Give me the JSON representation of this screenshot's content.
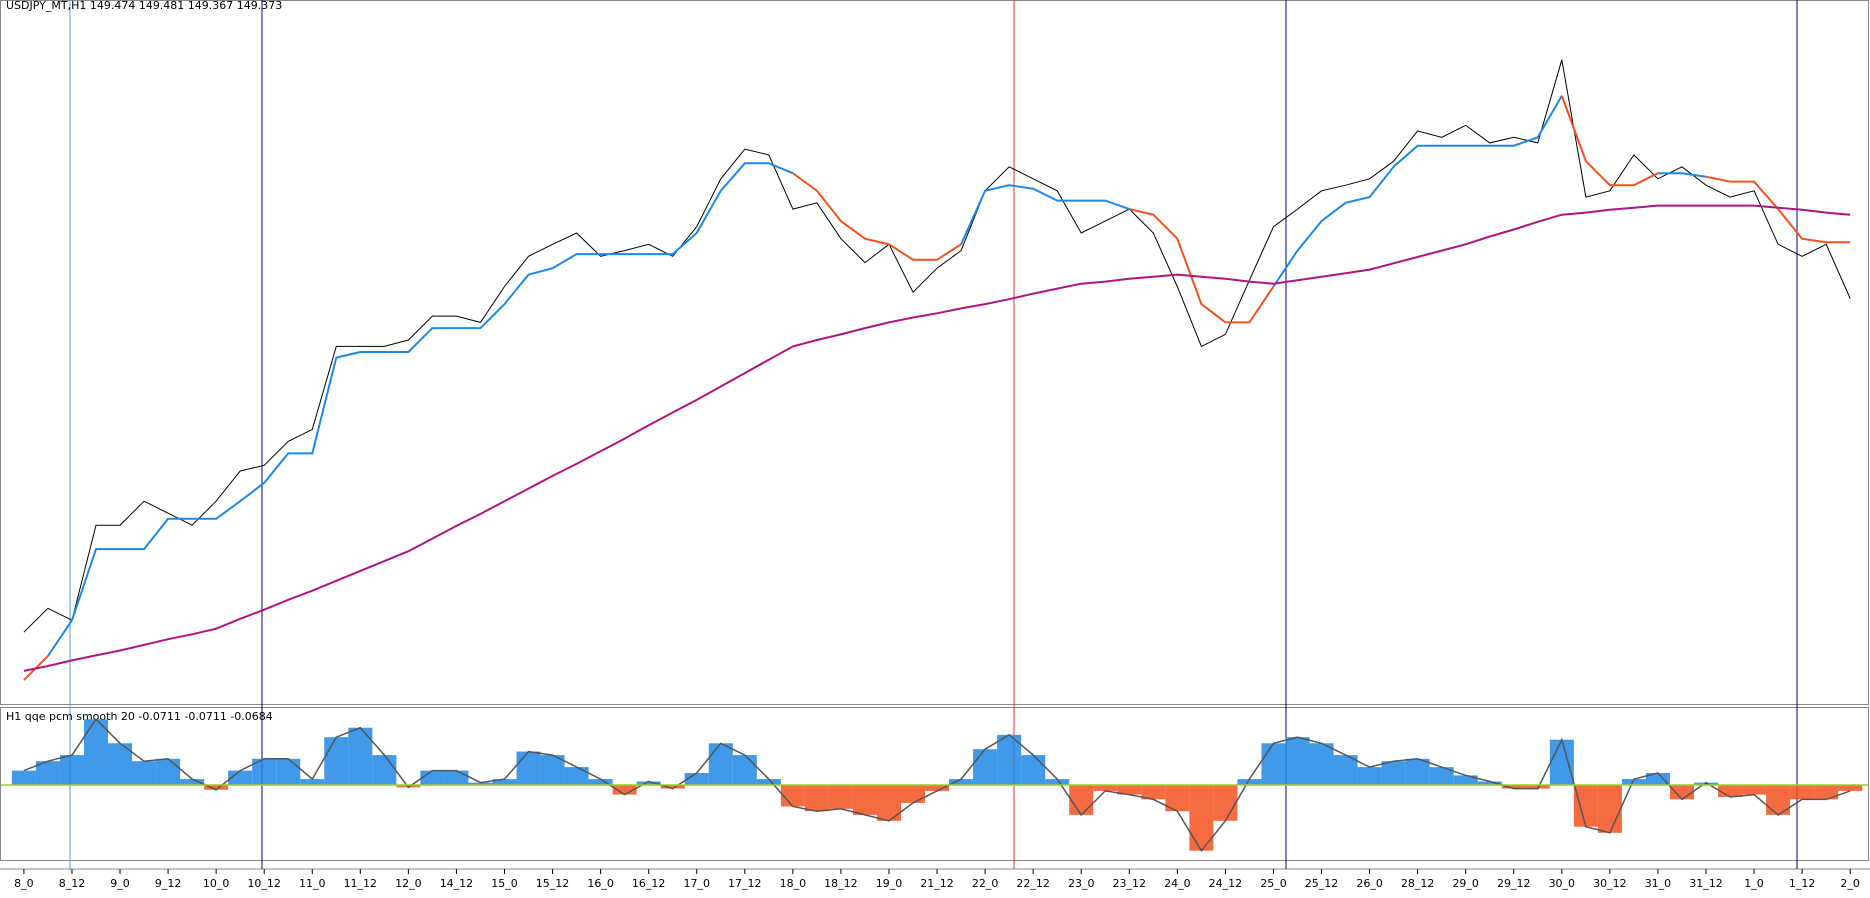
{
  "chart_data": [
    {
      "type": "line",
      "title": "USDJPY_MT,H1  149.474 149.481 149.367 149.373",
      "categories": [
        "8_0",
        null,
        "8_12",
        null,
        "9_0",
        null,
        "9_12",
        null,
        "10_0",
        null,
        "10_12",
        null,
        "11_0",
        null,
        "11_12",
        null,
        "12_0",
        null,
        "14_12",
        null,
        "15_0",
        null,
        "15_12",
        null,
        "16_0",
        null,
        "16_12",
        null,
        "17_0",
        null,
        "17_12",
        null,
        "18_0",
        null,
        "18_12",
        null,
        "19_0",
        null,
        "21_12",
        null,
        "22_0",
        null,
        "22_12",
        null,
        "23_0",
        null,
        "23_12",
        null,
        "24_0",
        null,
        "24_12",
        null,
        "25_0",
        null,
        "25_12",
        null,
        "26_0",
        null,
        "28_12",
        null,
        "29_0",
        null,
        "29_12",
        null,
        "30_0",
        null,
        "30_12",
        null,
        "31_0",
        null,
        "31_12",
        null,
        "1_0",
        null,
        "1_12",
        null,
        "2_0"
      ],
      "ylim": [
        0,
        100
      ],
      "series": [
        {
          "color": "#000000",
          "values": [
            10.2,
            13.6,
            11.9,
            25.4,
            25.4,
            28.8,
            27.1,
            25.4,
            28.8,
            33.1,
            33.9,
            37.3,
            39.0,
            50.8,
            50.8,
            50.8,
            51.7,
            55.1,
            55.1,
            54.2,
            59.3,
            63.6,
            65.3,
            66.9,
            63.6,
            64.4,
            65.3,
            63.6,
            67.8,
            74.6,
            78.8,
            78.0,
            70.3,
            71.2,
            66.1,
            62.7,
            65.3,
            58.5,
            61.9,
            64.4,
            72.9,
            76.3,
            74.6,
            72.9,
            66.9,
            68.6,
            70.3,
            66.9,
            59.3,
            50.8,
            52.5,
            60.2,
            67.8,
            70.3,
            72.9,
            73.7,
            74.6,
            77.1,
            81.4,
            80.5,
            82.2,
            79.7,
            80.5,
            79.7,
            91.5,
            72.0,
            72.9,
            78.0,
            74.6,
            76.3,
            73.7,
            72.0,
            72.9,
            65.3,
            63.6,
            65.3,
            57.6
          ]
        },
        {
          "color": "#1e88e5",
          "values": [
            null,
            6.8,
            11.9,
            22.0,
            22.0,
            22.0,
            26.3,
            26.3,
            26.3,
            28.8,
            31.4,
            35.6,
            35.6,
            49.2,
            50.0,
            50.0,
            50.0,
            53.4,
            53.4,
            53.4,
            56.8,
            61.0,
            61.9,
            63.9,
            63.9,
            63.9,
            63.9,
            63.9,
            66.9,
            72.9,
            76.8,
            76.8,
            75.4,
            null,
            null,
            null,
            null,
            null,
            null,
            65.3,
            72.9,
            73.7,
            73.2,
            71.5,
            71.5,
            71.5,
            70.3,
            null,
            null,
            null,
            null,
            null,
            59.3,
            64.4,
            68.6,
            71.2,
            72.0,
            76.3,
            79.3,
            79.3,
            79.3,
            79.3,
            79.3,
            80.5,
            86.4,
            null,
            null,
            null,
            75.4,
            75.4,
            74.9,
            null,
            null,
            null,
            null,
            null,
            null
          ]
        },
        {
          "color": "#f4511e",
          "values": [
            3.4,
            6.8,
            null,
            null,
            null,
            null,
            null,
            null,
            null,
            null,
            null,
            null,
            null,
            null,
            null,
            null,
            null,
            null,
            null,
            null,
            null,
            null,
            null,
            null,
            null,
            null,
            null,
            null,
            null,
            null,
            null,
            null,
            75.4,
            72.9,
            68.6,
            66.1,
            65.3,
            63.1,
            63.1,
            65.3,
            null,
            null,
            null,
            null,
            null,
            null,
            70.3,
            69.5,
            66.1,
            56.8,
            54.2,
            54.2,
            59.3,
            null,
            null,
            null,
            null,
            null,
            null,
            null,
            null,
            null,
            null,
            null,
            86.4,
            77.1,
            73.7,
            73.7,
            75.4,
            null,
            74.9,
            74.2,
            74.2,
            70.3,
            66.1,
            65.6,
            65.6
          ]
        },
        {
          "color": "#b0157f",
          "values": [
            4.7,
            5.4,
            6.2,
            6.9,
            7.6,
            8.4,
            9.2,
            9.9,
            10.7,
            12.1,
            13.4,
            14.8,
            16.1,
            17.5,
            18.9,
            20.3,
            21.7,
            23.5,
            25.3,
            27.0,
            28.8,
            30.6,
            32.4,
            34.1,
            35.9,
            37.7,
            39.6,
            41.4,
            43.2,
            45.1,
            47.0,
            48.9,
            50.8,
            51.7,
            52.5,
            53.4,
            54.2,
            54.9,
            55.5,
            56.2,
            56.8,
            57.5,
            58.3,
            59.0,
            59.7,
            60.0,
            60.4,
            60.7,
            61.0,
            60.7,
            60.4,
            60.0,
            59.7,
            60.2,
            60.7,
            61.2,
            61.7,
            62.6,
            63.5,
            64.4,
            65.3,
            66.4,
            67.4,
            68.5,
            69.5,
            69.8,
            70.2,
            70.5,
            70.8,
            70.8,
            70.8,
            70.8,
            70.8,
            70.5,
            70.2,
            69.8,
            69.5
          ]
        }
      ]
    },
    {
      "type": "bar",
      "title": "H1  qqe pcm smooth 20 -0.0711 -0.0711 -0.0684",
      "ylim": [
        -0.5,
        0.5
      ],
      "positive_color": "#1e88e5",
      "negative_color": "#f4511e",
      "outline_color": "#555555",
      "zero_line_color": "#9acd32",
      "values": [
        0.097,
        0.161,
        0.202,
        0.444,
        0.282,
        0.161,
        0.177,
        0.04,
        -0.032,
        0.097,
        0.177,
        0.177,
        0.04,
        0.323,
        0.387,
        0.202,
        -0.016,
        0.097,
        0.097,
        0.016,
        0.04,
        0.226,
        0.202,
        0.121,
        0.04,
        -0.065,
        0.024,
        -0.024,
        0.081,
        0.282,
        0.202,
        0.04,
        -0.145,
        -0.177,
        -0.161,
        -0.202,
        -0.242,
        -0.121,
        -0.04,
        0.04,
        0.242,
        0.339,
        0.202,
        0.04,
        -0.202,
        -0.04,
        -0.065,
        -0.097,
        -0.177,
        -0.444,
        -0.242,
        0.04,
        0.282,
        0.323,
        0.282,
        0.202,
        0.121,
        0.161,
        0.177,
        0.121,
        0.065,
        0.024,
        -0.024,
        -0.024,
        0.306,
        -0.282,
        -0.323,
        0.04,
        0.081,
        -0.097,
        0.016,
        -0.081,
        -0.065,
        -0.202,
        -0.097,
        -0.097,
        -0.04
      ]
    }
  ]
}
